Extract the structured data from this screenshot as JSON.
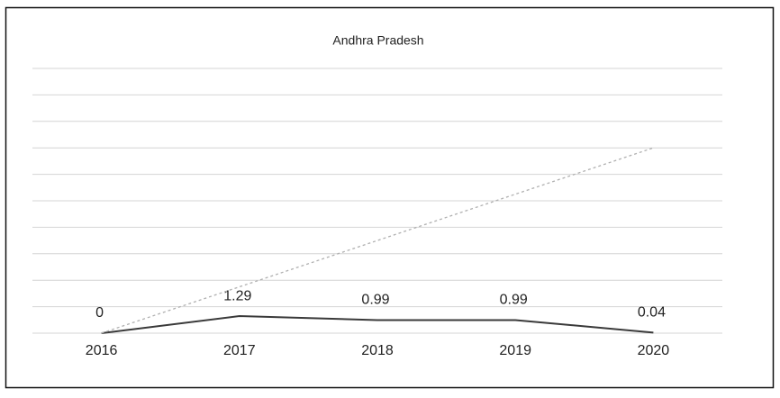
{
  "chart_data": {
    "type": "line",
    "title": "Andhra Pradesh",
    "categories": [
      "2016",
      "2017",
      "2018",
      "2019",
      "2020"
    ],
    "series": [
      {
        "name": "Andhra Pradesh",
        "color": "#3a3a3a",
        "values": [
          0,
          1.29,
          0.99,
          0.99,
          0.04
        ],
        "data_labels": true,
        "dashed": false
      },
      {
        "color": "#b0b0b0",
        "values": [
          0,
          3.5,
          7,
          10.5,
          14
        ],
        "data_labels": false,
        "dashed": true
      }
    ],
    "ylim": [
      0,
      20
    ],
    "yticks": [
      0,
      2,
      4,
      6,
      8,
      10,
      12,
      14,
      16,
      18,
      20
    ],
    "grid": true
  }
}
